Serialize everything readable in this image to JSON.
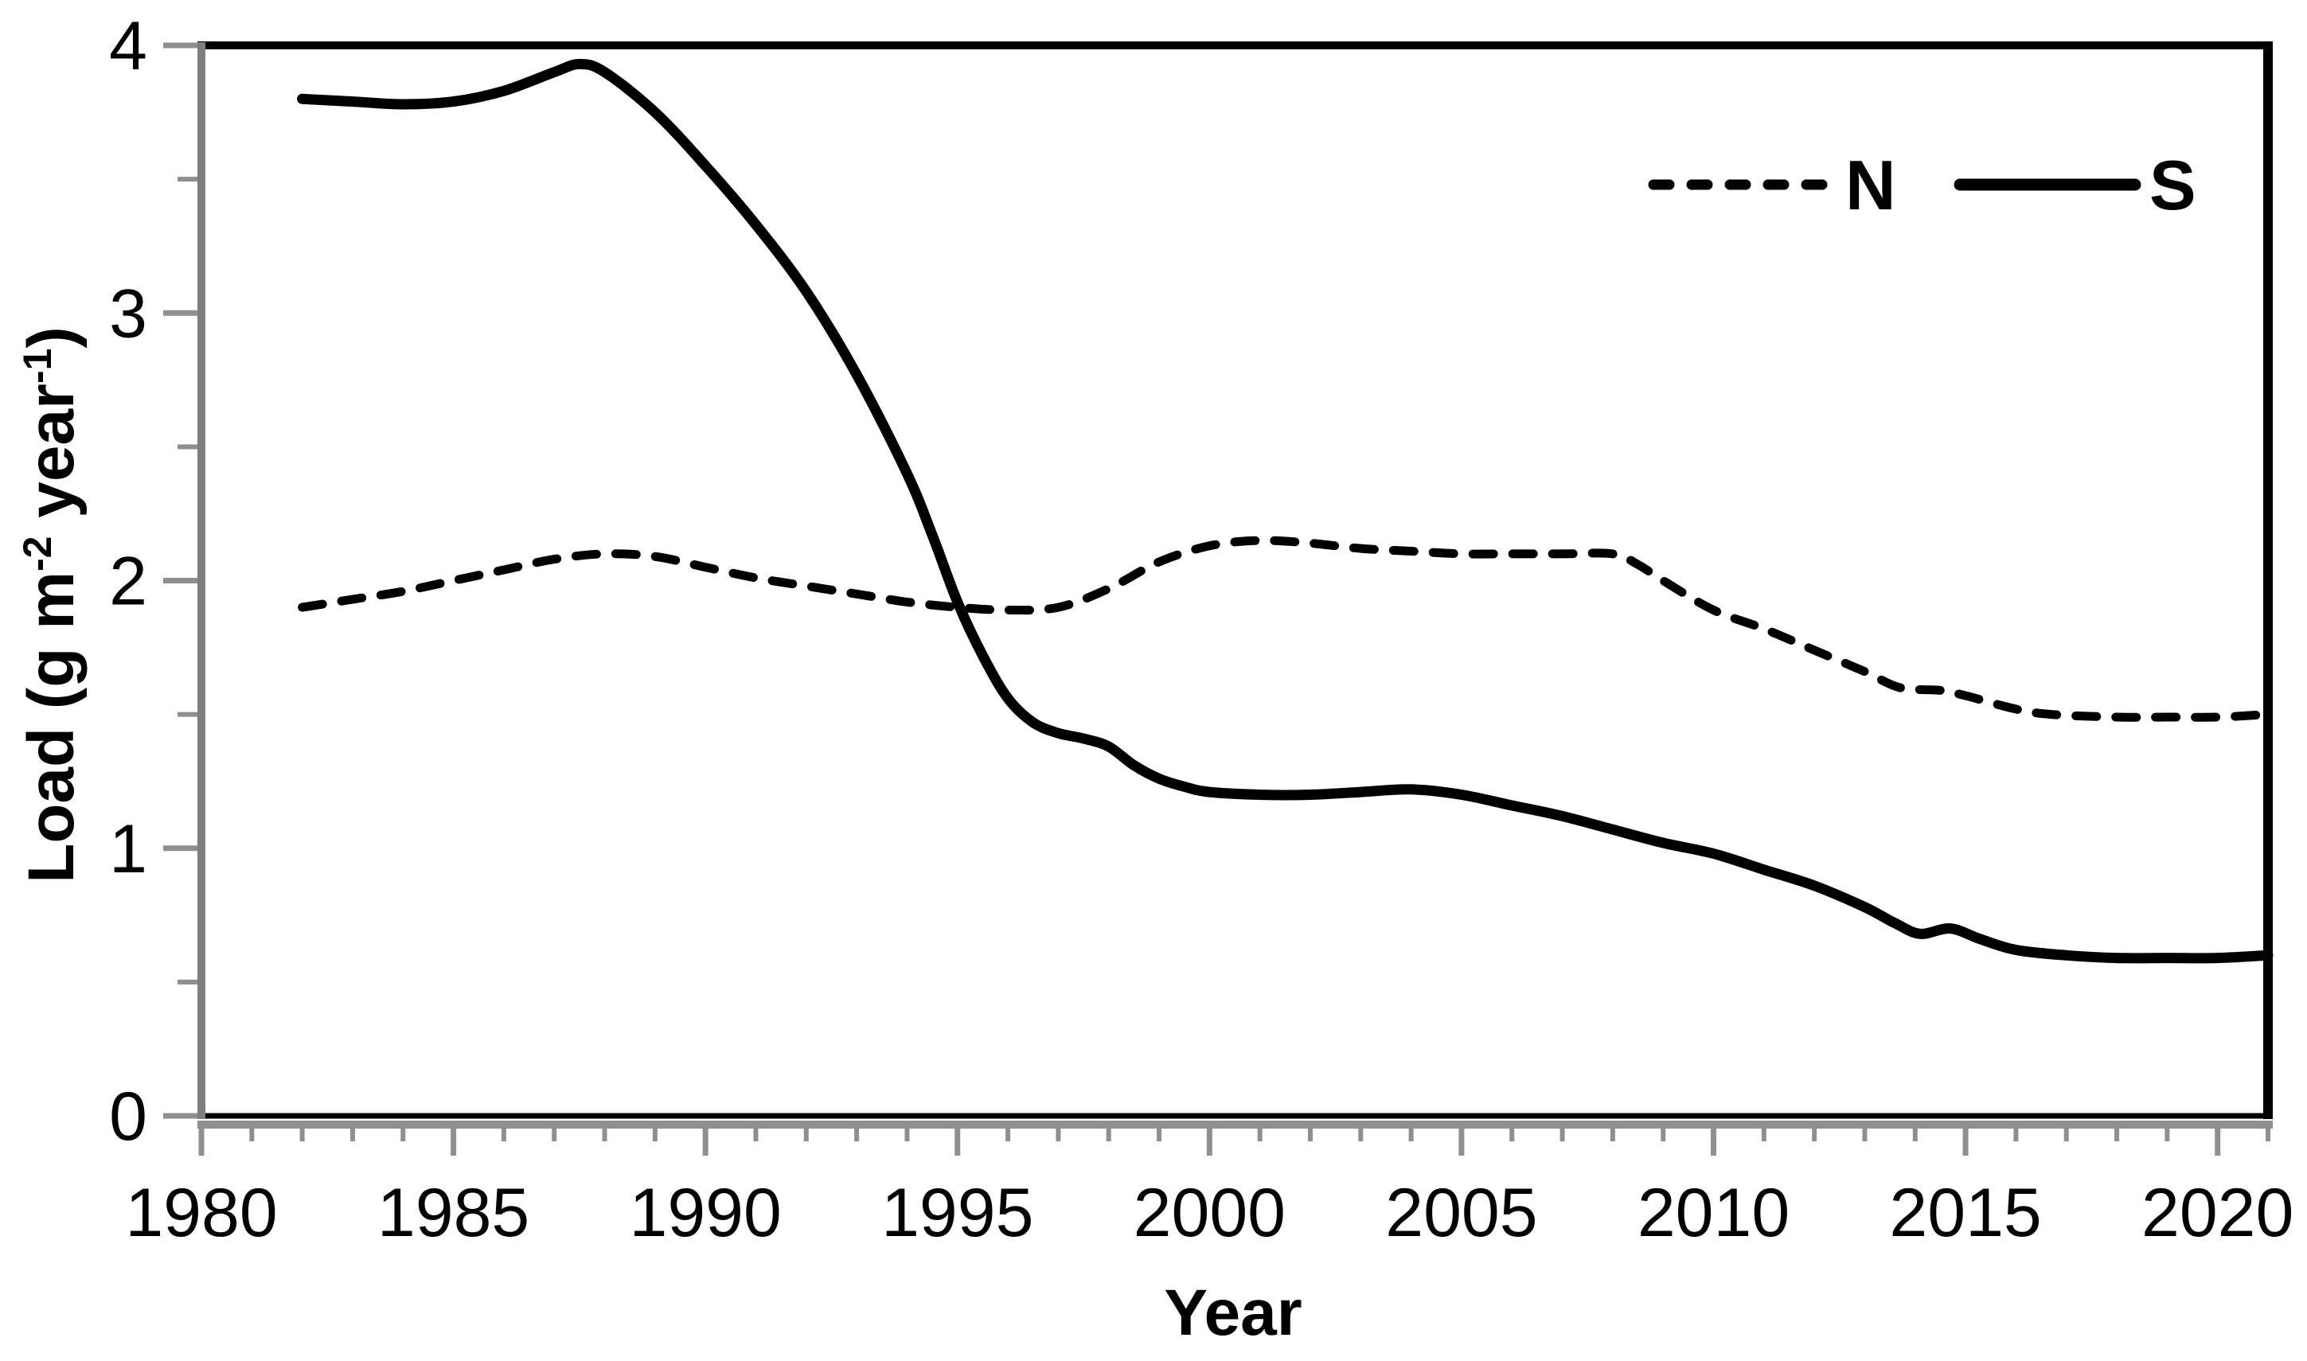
{
  "chart_data": {
    "type": "line",
    "title": "",
    "xlabel": "Year",
    "ylabel": "Load (g m⁻² year⁻¹)",
    "ylabel_parts": [
      {
        "t": "Load (g m"
      },
      {
        "t": "-2",
        "sup": true
      },
      {
        "t": " year"
      },
      {
        "t": "-1",
        "sup": true
      },
      {
        "t": ")"
      }
    ],
    "xlim": [
      1980,
      2021
    ],
    "ylim": [
      0,
      4
    ],
    "xticks": {
      "major": [
        1980,
        1985,
        1990,
        1995,
        2000,
        2005,
        2010,
        2015,
        2020
      ],
      "minor_step": 1
    },
    "yticks": {
      "major": [
        0,
        1,
        2,
        3,
        4
      ],
      "minor_step": 0.5
    },
    "grid": false,
    "legend": {
      "position": "top-right-inside",
      "entries": [
        {
          "label": "N",
          "style": "dashed"
        },
        {
          "label": "S",
          "style": "solid"
        }
      ]
    },
    "series": [
      {
        "name": "N",
        "style": "dashed",
        "color": "#000000",
        "points": [
          [
            1982,
            1.9
          ],
          [
            1983,
            1.93
          ],
          [
            1984,
            1.96
          ],
          [
            1985,
            2.0
          ],
          [
            1986,
            2.04
          ],
          [
            1987,
            2.08
          ],
          [
            1988,
            2.1
          ],
          [
            1989,
            2.09
          ],
          [
            1990,
            2.05
          ],
          [
            1991,
            2.01
          ],
          [
            1992,
            1.98
          ],
          [
            1993,
            1.95
          ],
          [
            1994,
            1.92
          ],
          [
            1995,
            1.9
          ],
          [
            1996,
            1.89
          ],
          [
            1997,
            1.9
          ],
          [
            1998,
            1.97
          ],
          [
            1999,
            2.07
          ],
          [
            2000,
            2.13
          ],
          [
            2001,
            2.15
          ],
          [
            2002,
            2.14
          ],
          [
            2003,
            2.12
          ],
          [
            2004,
            2.11
          ],
          [
            2005,
            2.1
          ],
          [
            2006,
            2.1
          ],
          [
            2007,
            2.1
          ],
          [
            2008,
            2.1
          ],
          [
            2008.5,
            2.06
          ],
          [
            2009,
            2.0
          ],
          [
            2010,
            1.89
          ],
          [
            2011,
            1.82
          ],
          [
            2012,
            1.74
          ],
          [
            2013,
            1.66
          ],
          [
            2013.7,
            1.6
          ],
          [
            2014.5,
            1.59
          ],
          [
            2015,
            1.57
          ],
          [
            2016,
            1.52
          ],
          [
            2016.7,
            1.5
          ],
          [
            2018,
            1.49
          ],
          [
            2019,
            1.49
          ],
          [
            2020,
            1.49
          ],
          [
            2021,
            1.5
          ]
        ]
      },
      {
        "name": "S",
        "style": "solid",
        "color": "#000000",
        "points": [
          [
            1982,
            3.8
          ],
          [
            1983,
            3.79
          ],
          [
            1984,
            3.78
          ],
          [
            1985,
            3.79
          ],
          [
            1986,
            3.83
          ],
          [
            1987,
            3.9
          ],
          [
            1987.5,
            3.93
          ],
          [
            1988,
            3.9
          ],
          [
            1989,
            3.75
          ],
          [
            1990,
            3.55
          ],
          [
            1991,
            3.33
          ],
          [
            1992,
            3.08
          ],
          [
            1993,
            2.77
          ],
          [
            1994,
            2.4
          ],
          [
            1994.5,
            2.17
          ],
          [
            1995,
            1.92
          ],
          [
            1995.5,
            1.72
          ],
          [
            1996,
            1.56
          ],
          [
            1996.5,
            1.47
          ],
          [
            1997,
            1.43
          ],
          [
            1997.5,
            1.41
          ],
          [
            1998,
            1.38
          ],
          [
            1998.5,
            1.31
          ],
          [
            1999,
            1.26
          ],
          [
            1999.5,
            1.23
          ],
          [
            2000,
            1.21
          ],
          [
            2001,
            1.2
          ],
          [
            2002,
            1.2
          ],
          [
            2003,
            1.21
          ],
          [
            2004,
            1.22
          ],
          [
            2005,
            1.2
          ],
          [
            2006,
            1.16
          ],
          [
            2007,
            1.12
          ],
          [
            2008,
            1.07
          ],
          [
            2009,
            1.02
          ],
          [
            2010,
            0.98
          ],
          [
            2011,
            0.92
          ],
          [
            2012,
            0.86
          ],
          [
            2013,
            0.78
          ],
          [
            2013.6,
            0.72
          ],
          [
            2014.1,
            0.68
          ],
          [
            2014.7,
            0.7
          ],
          [
            2015.3,
            0.66
          ],
          [
            2016,
            0.62
          ],
          [
            2017,
            0.6
          ],
          [
            2018,
            0.59
          ],
          [
            2019,
            0.59
          ],
          [
            2020,
            0.59
          ],
          [
            2021,
            0.6
          ]
        ]
      }
    ]
  },
  "colors": {
    "line": "#000000",
    "axis_gray": "#7f7f7f",
    "tick_gray": "#8f8f8f",
    "background": "#ffffff"
  }
}
